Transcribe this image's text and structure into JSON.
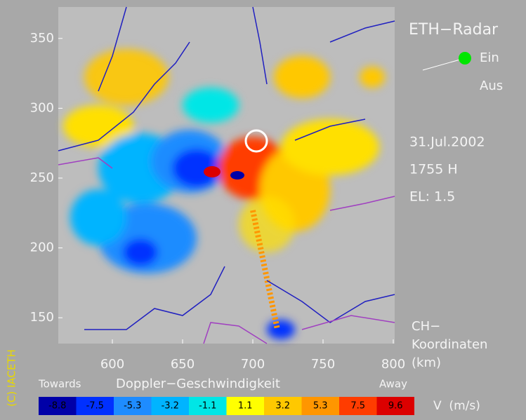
{
  "header": {
    "title": "ETH−Radar",
    "legend": [
      "Ein",
      "Aus"
    ],
    "date": "31.Jul.2002",
    "time": "1755 H",
    "elevation": "EL: 1.5",
    "axis_label": [
      "CH−",
      "Koordinaten",
      "(km)"
    ]
  },
  "map": {
    "xlim": [
      561.5,
      801
    ],
    "ylim": [
      131.5,
      372.5
    ],
    "xticks": [
      600,
      650,
      700,
      750,
      800
    ],
    "yticks": [
      150,
      200,
      250,
      300,
      350
    ]
  },
  "colorbar": {
    "title": "Doppler−Geschwindigkeit",
    "left_label": "Towards",
    "right_label": "Away",
    "unit": "V  (m/s)",
    "values": [
      -8.8,
      -7.5,
      -5.3,
      -3.2,
      -1.1,
      1.1,
      3.2,
      5.3,
      7.5,
      9.6
    ],
    "colors": [
      "#0000a8",
      "#0030ff",
      "#1e8cff",
      "#00b4ff",
      "#00e6e6",
      "#ffff00",
      "#ffc800",
      "#ff9600",
      "#ff3c00",
      "#dc0000"
    ]
  },
  "copyright": "(C) IACETH"
}
